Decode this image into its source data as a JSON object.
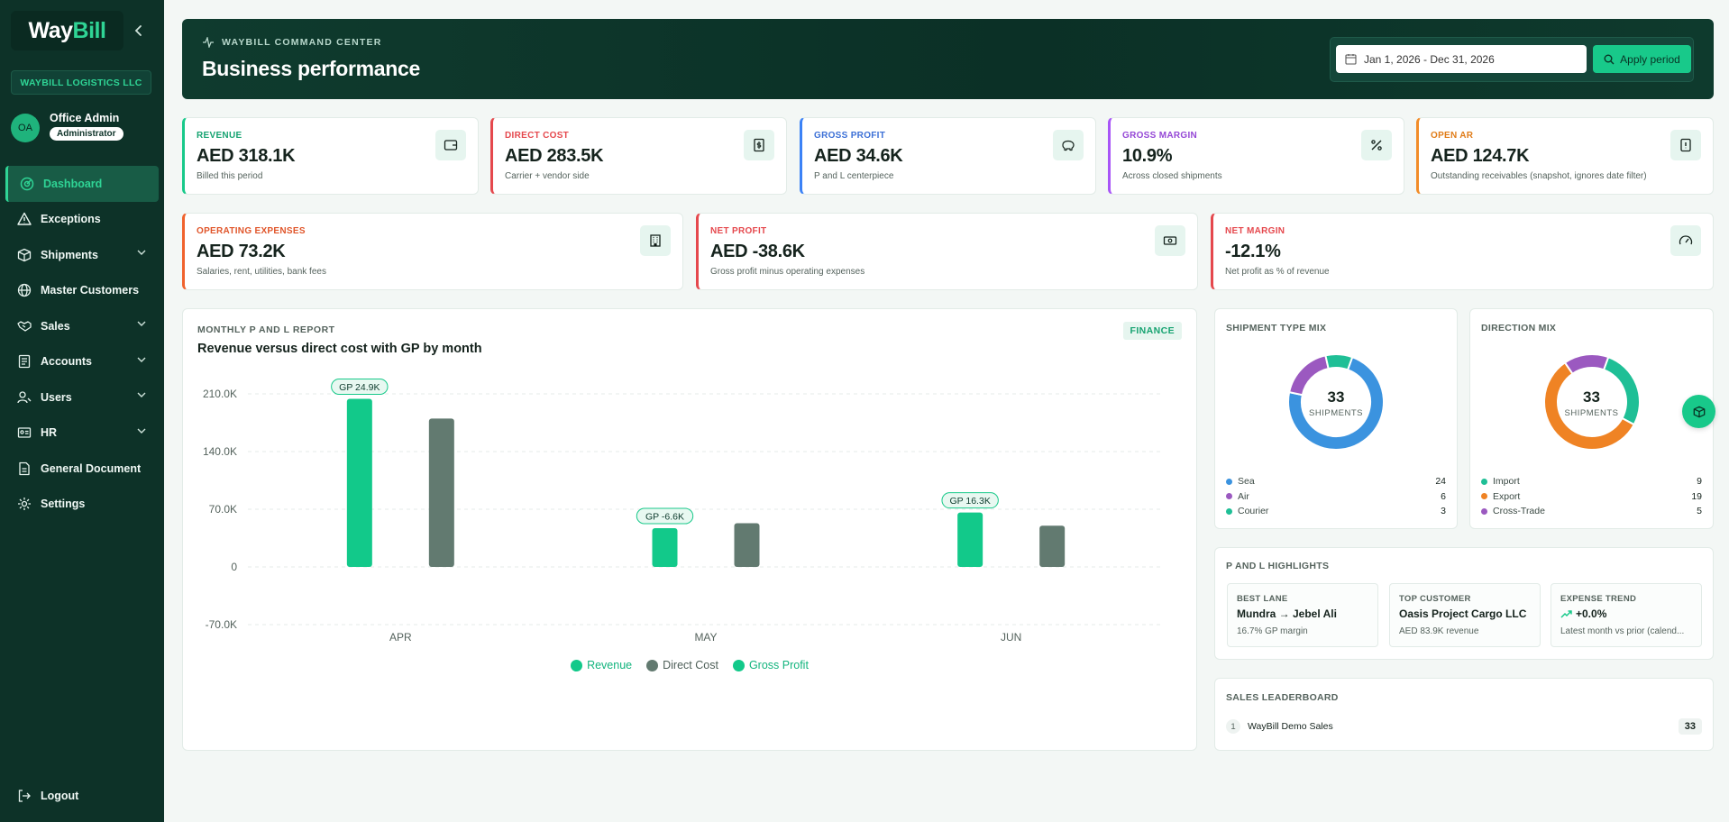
{
  "sidebar": {
    "logo_part1": "Way",
    "logo_part2": "Bill",
    "company": "WAYBILL LOGISTICS LLC",
    "user": {
      "initials": "OA",
      "name": "Office Admin",
      "role": "Administrator"
    },
    "items": [
      {
        "label": "Dashboard",
        "icon": "dashboard-icon"
      },
      {
        "label": "Exceptions",
        "icon": "warning-icon"
      },
      {
        "label": "Shipments",
        "icon": "box-icon"
      },
      {
        "label": "Master Customers",
        "icon": "globe-icon"
      },
      {
        "label": "Sales",
        "icon": "handshake-icon"
      },
      {
        "label": "Accounts",
        "icon": "ledger-icon"
      },
      {
        "label": "Users",
        "icon": "users-icon"
      },
      {
        "label": "HR",
        "icon": "id-card-icon"
      },
      {
        "label": "General Document",
        "icon": "document-icon"
      },
      {
        "label": "Settings",
        "icon": "gear-icon"
      }
    ],
    "logout": "Logout"
  },
  "header": {
    "kicker": "WAYBILL COMMAND CENTER",
    "title": "Business performance",
    "date_range": "Jan 1, 2026 - Dec 31, 2026",
    "apply_label": "Apply period"
  },
  "kpis": [
    {
      "label": "REVENUE",
      "value": "AED 318.1K",
      "sub": "Billed this period",
      "color": "#18c98a"
    },
    {
      "label": "DIRECT COST",
      "value": "AED 283.5K",
      "sub": "Carrier + vendor side",
      "color": "#e5484d"
    },
    {
      "label": "GROSS PROFIT",
      "value": "AED 34.6K",
      "sub": "P and L centerpiece",
      "color": "#3b82f6"
    },
    {
      "label": "GROSS MARGIN",
      "value": "10.9%",
      "sub": "Across closed shipments",
      "color": "#a855f7"
    },
    {
      "label": "OPEN AR",
      "value": "AED 124.7K",
      "sub": "Outstanding receivables (snapshot, ignores date filter)",
      "color": "#f28c28"
    },
    {
      "label": "OPERATING EXPENSES",
      "value": "AED 73.2K",
      "sub": "Salaries, rent, utilities, bank fees",
      "color": "#f0622d"
    },
    {
      "label": "NET PROFIT",
      "value": "AED -38.6K",
      "sub": "Gross profit minus operating expenses",
      "color": "#e5484d"
    },
    {
      "label": "NET MARGIN",
      "value": "-12.1%",
      "sub": "Net profit as % of revenue",
      "color": "#e5484d"
    }
  ],
  "pl_report": {
    "kicker": "MONTHLY P AND L REPORT",
    "title": "Revenue versus direct cost with GP by month",
    "badge": "FINANCE"
  },
  "chart_data": {
    "type": "bar",
    "categories": [
      "APR",
      "MAY",
      "JUN"
    ],
    "ylim": [
      -70000,
      210000
    ],
    "yticks": [
      {
        "value": 210000,
        "label": "210.0K"
      },
      {
        "value": 140000,
        "label": "140.0K"
      },
      {
        "value": 70000,
        "label": "70.0K"
      },
      {
        "value": 0,
        "label": "0"
      },
      {
        "value": -70000,
        "label": "-70.0K"
      }
    ],
    "series": [
      {
        "name": "Revenue",
        "color": "#12c98a",
        "values": [
          204000,
          47000,
          66000
        ]
      },
      {
        "name": "Direct Cost",
        "color": "#627a70",
        "values": [
          180000,
          53000,
          50000
        ]
      },
      {
        "name": "Gross Profit",
        "color": "#12c98a",
        "values": [
          24900,
          -6600,
          16300
        ]
      }
    ],
    "gp_labels": [
      "GP 24.9K",
      "GP -6.6K",
      "GP 16.3K"
    ],
    "legend": [
      "Revenue",
      "Direct Cost",
      "Gross Profit"
    ],
    "legend_position": "bottom-center",
    "grid": true
  },
  "shipment_mix": {
    "title": "SHIPMENT TYPE MIX",
    "total": "33",
    "total_label": "SHIPMENTS",
    "items": [
      {
        "label": "Sea",
        "value": 24,
        "color": "#3b93df"
      },
      {
        "label": "Air",
        "value": 6,
        "color": "#9b59c0"
      },
      {
        "label": "Courier",
        "value": 3,
        "color": "#1fbf96"
      }
    ]
  },
  "direction_mix": {
    "title": "DIRECTION MIX",
    "total": "33",
    "total_label": "SHIPMENTS",
    "items": [
      {
        "label": "Import",
        "value": 9,
        "color": "#1fbf96"
      },
      {
        "label": "Export",
        "value": 19,
        "color": "#ef8324"
      },
      {
        "label": "Cross-Trade",
        "value": 5,
        "color": "#9b59c0"
      }
    ]
  },
  "highlights": {
    "title": "P AND L HIGHLIGHTS",
    "boxes": [
      {
        "label": "BEST LANE",
        "value": "Mundra → Jebel Ali",
        "sub": "16.7% GP margin"
      },
      {
        "label": "TOP CUSTOMER",
        "value": "Oasis Project Cargo LLC",
        "sub": "AED 83.9K revenue"
      },
      {
        "label": "EXPENSE TREND",
        "value": "+0.0%",
        "sub": "Latest month vs prior (calend..."
      }
    ]
  },
  "leaderboard": {
    "title": "SALES LEADERBOARD",
    "rows": [
      {
        "rank": "1",
        "name": "WayBill Demo Sales",
        "count": "33"
      }
    ]
  }
}
